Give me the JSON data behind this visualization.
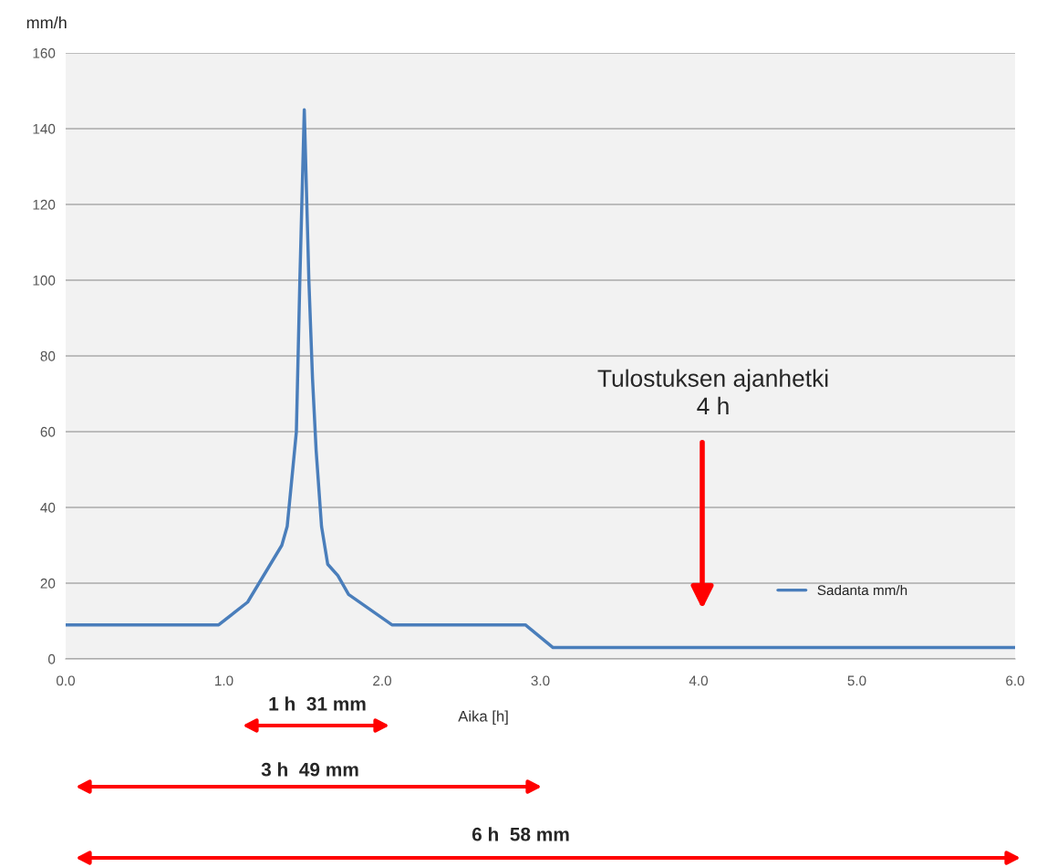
{
  "chart_data": {
    "type": "line",
    "ylabel": "mm/h",
    "xlabel": "Aika [h]",
    "x": [
      0,
      0.967,
      1.15,
      1.366,
      1.4,
      1.435,
      1.458,
      1.48,
      1.508,
      1.537,
      1.56,
      1.583,
      1.617,
      1.656,
      1.72,
      1.788,
      2.062,
      2.905,
      3.08,
      6.0
    ],
    "series": [
      {
        "name": "Sadanta mm/h",
        "color": "#4a7ebb",
        "values": [
          9,
          9,
          15,
          30,
          35,
          50,
          60,
          100,
          145,
          100,
          74,
          55,
          35,
          25,
          22,
          17,
          9,
          9,
          3,
          3
        ]
      }
    ],
    "xlim": [
      0,
      6
    ],
    "xticks": [
      {
        "value": 0,
        "label": "0.0"
      },
      {
        "value": 1,
        "label": "1.0"
      },
      {
        "value": 2,
        "label": "2.0"
      },
      {
        "value": 3,
        "label": "3.0"
      },
      {
        "value": 4,
        "label": "4.0"
      },
      {
        "value": 5,
        "label": "5.0"
      },
      {
        "value": 6,
        "label": "6.0"
      }
    ],
    "ylim": [
      0,
      160
    ],
    "yticks": [
      0,
      20,
      40,
      60,
      80,
      100,
      120,
      140,
      160
    ],
    "grid": "y",
    "legend": "lower right",
    "marker": "none",
    "line_style": "solid",
    "annotations": [
      "Tulostuksen ajanhetki\n4 h",
      "1 h  31 mm",
      "3 h  49 mm",
      "6 h  58 mm"
    ]
  }
}
